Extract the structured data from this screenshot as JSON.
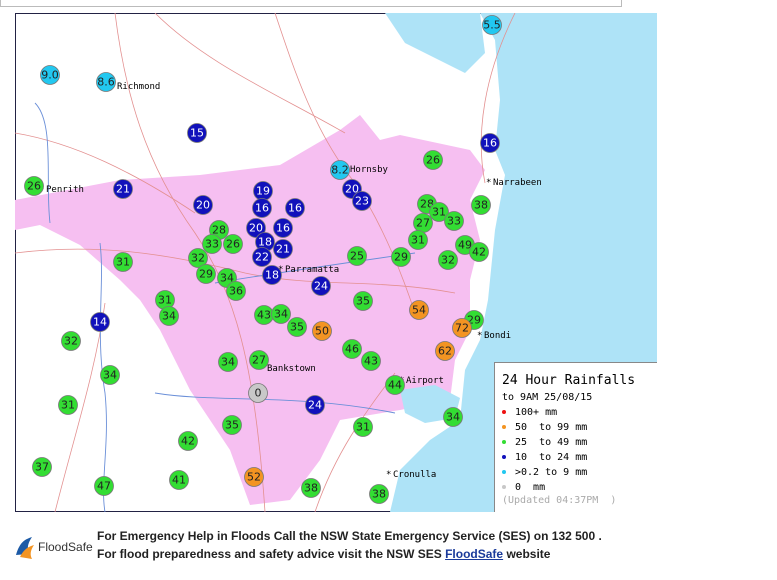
{
  "legend": {
    "title": "24 Hour Rainfalls",
    "subtitle": "to 9AM 25/08/15",
    "items": [
      {
        "label": "100+ mm",
        "color": "#ee1111"
      },
      {
        "label": "50  to 99 mm",
        "color": "#f39422"
      },
      {
        "label": "25  to 49 mm",
        "color": "#33dd33"
      },
      {
        "label": "10  to 24 mm",
        "color": "#1111bb"
      },
      {
        "label": ">0.2 to 9 mm",
        "color": "#22c8f0"
      },
      {
        "label": "0  mm",
        "color": "#c8c8c8"
      }
    ],
    "updated": "(Updated 04:37PM  )"
  },
  "places": [
    "Richmond",
    "Penrith",
    "Hornsby",
    "Narrabeen",
    "Parramatta",
    "Bondi",
    "Bankstown",
    "Airport",
    "Cronulla"
  ],
  "markers": [
    {
      "label": "5.5",
      "color": "#22c8f0"
    },
    {
      "label": "9.0",
      "color": "#22c8f0"
    },
    {
      "label": "8.6",
      "color": "#22c8f0"
    },
    {
      "label": "15",
      "color": "#1111bb"
    },
    {
      "label": "16",
      "color": "#1111bb"
    },
    {
      "label": "8.2",
      "color": "#22c8f0"
    },
    {
      "label": "26",
      "color": "#33dd33"
    },
    {
      "label": "26",
      "color": "#33dd33"
    },
    {
      "label": "21",
      "color": "#1111bb"
    },
    {
      "label": "19",
      "color": "#1111bb"
    },
    {
      "label": "20",
      "color": "#1111bb"
    },
    {
      "label": "23",
      "color": "#1111bb"
    },
    {
      "label": "20",
      "color": "#1111bb"
    },
    {
      "label": "16",
      "color": "#1111bb"
    },
    {
      "label": "16",
      "color": "#1111bb"
    },
    {
      "label": "28",
      "color": "#33dd33"
    },
    {
      "label": "31",
      "color": "#33dd33"
    },
    {
      "label": "33",
      "color": "#33dd33"
    },
    {
      "label": "38",
      "color": "#33dd33"
    },
    {
      "label": "27",
      "color": "#33dd33"
    },
    {
      "label": "28",
      "color": "#33dd33"
    },
    {
      "label": "20",
      "color": "#1111bb"
    },
    {
      "label": "16",
      "color": "#1111bb"
    },
    {
      "label": "33",
      "color": "#33dd33"
    },
    {
      "label": "26",
      "color": "#33dd33"
    },
    {
      "label": "18",
      "color": "#1111bb"
    },
    {
      "label": "21",
      "color": "#1111bb"
    },
    {
      "label": "31",
      "color": "#33dd33"
    },
    {
      "label": "49",
      "color": "#33dd33"
    },
    {
      "label": "42",
      "color": "#33dd33"
    },
    {
      "label": "32",
      "color": "#33dd33"
    },
    {
      "label": "22",
      "color": "#1111bb"
    },
    {
      "label": "25",
      "color": "#33dd33"
    },
    {
      "label": "29",
      "color": "#33dd33"
    },
    {
      "label": "32",
      "color": "#33dd33"
    },
    {
      "label": "31",
      "color": "#33dd33"
    },
    {
      "label": "29",
      "color": "#33dd33"
    },
    {
      "label": "34",
      "color": "#33dd33"
    },
    {
      "label": "18",
      "color": "#1111bb"
    },
    {
      "label": "36",
      "color": "#33dd33"
    },
    {
      "label": "24",
      "color": "#1111bb"
    },
    {
      "label": "31",
      "color": "#33dd33"
    },
    {
      "label": "35",
      "color": "#33dd33"
    },
    {
      "label": "54",
      "color": "#f39422"
    },
    {
      "label": "34",
      "color": "#33dd33"
    },
    {
      "label": "43",
      "color": "#33dd33"
    },
    {
      "label": "34",
      "color": "#33dd33"
    },
    {
      "label": "35",
      "color": "#33dd33"
    },
    {
      "label": "50",
      "color": "#f39422"
    },
    {
      "label": "29",
      "color": "#33dd33"
    },
    {
      "label": "72",
      "color": "#f39422"
    },
    {
      "label": "14",
      "color": "#1111bb"
    },
    {
      "label": "32",
      "color": "#33dd33"
    },
    {
      "label": "46",
      "color": "#33dd33"
    },
    {
      "label": "62",
      "color": "#f39422"
    },
    {
      "label": "34",
      "color": "#33dd33"
    },
    {
      "label": "27",
      "color": "#33dd33"
    },
    {
      "label": "43",
      "color": "#33dd33"
    },
    {
      "label": "34",
      "color": "#33dd33"
    },
    {
      "label": "44",
      "color": "#33dd33"
    },
    {
      "label": "0",
      "color": "#c8c8c8"
    },
    {
      "label": "31",
      "color": "#33dd33"
    },
    {
      "label": "24",
      "color": "#1111bb"
    },
    {
      "label": "34",
      "color": "#33dd33"
    },
    {
      "label": "35",
      "color": "#33dd33"
    },
    {
      "label": "31",
      "color": "#33dd33"
    },
    {
      "label": "42",
      "color": "#33dd33"
    },
    {
      "label": "37",
      "color": "#33dd33"
    },
    {
      "label": "52",
      "color": "#f39422"
    },
    {
      "label": "41",
      "color": "#33dd33"
    },
    {
      "label": "47",
      "color": "#33dd33"
    },
    {
      "label": "38",
      "color": "#33dd33"
    },
    {
      "label": "38",
      "color": "#33dd33"
    }
  ],
  "footer": {
    "logo": "FloodSafe",
    "line1": "For Emergency Help in Floods Call the NSW State Emergency Service (SES) on 132 500 .",
    "line2": "For flood preparedness and safety advice visit the NSW SES ",
    "link": "FloodSafe",
    "line2_end": " website"
  }
}
